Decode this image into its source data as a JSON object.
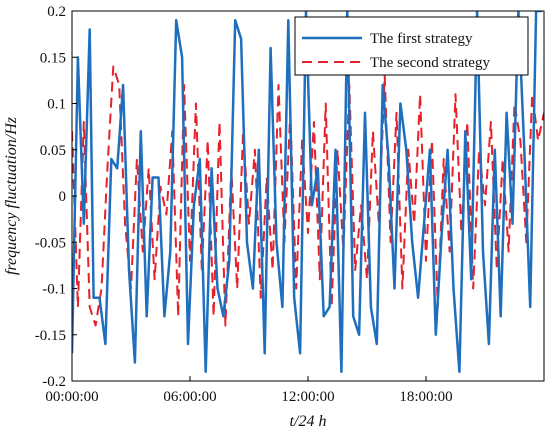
{
  "chart_data": {
    "type": "line",
    "xlabel": "t/24 h",
    "ylabel": "frequency fluctuation/Hz",
    "xlim": [
      0,
      24
    ],
    "ylim": [
      -0.2,
      0.2
    ],
    "x_ticks": [
      {
        "v": 0,
        "label": "00:00:00"
      },
      {
        "v": 6,
        "label": "06:00:00"
      },
      {
        "v": 12,
        "label": "12:00:00"
      },
      {
        "v": 18,
        "label": "18:00:00"
      }
    ],
    "y_ticks": [
      {
        "v": -0.2,
        "label": "-0.2"
      },
      {
        "v": -0.15,
        "label": "-0.15"
      },
      {
        "v": -0.1,
        "label": "-0.1"
      },
      {
        "v": -0.05,
        "label": "-0.05"
      },
      {
        "v": 0,
        "label": "0"
      },
      {
        "v": 0.05,
        "label": "0.05"
      },
      {
        "v": 0.1,
        "label": "0.1"
      },
      {
        "v": 0.15,
        "label": "0.15"
      },
      {
        "v": 0.2,
        "label": "0.2"
      }
    ],
    "grid": false,
    "legend": "top-right",
    "series": [
      {
        "name": "The first strategy",
        "color": "#1f6fbf",
        "dash": "solid",
        "x": [
          0,
          0.3,
          0.6,
          0.9,
          1.1,
          1.4,
          1.7,
          2,
          2.3,
          2.6,
          2.9,
          3.2,
          3.5,
          3.8,
          4.1,
          4.4,
          4.7,
          5,
          5.3,
          5.6,
          5.9,
          6.2,
          6.5,
          6.8,
          7.1,
          7.4,
          7.7,
          8,
          8.3,
          8.6,
          8.9,
          9.2,
          9.5,
          9.8,
          10.1,
          10.4,
          10.7,
          11,
          11.3,
          11.6,
          11.9,
          12.2,
          12.5,
          12.8,
          13.1,
          13.4,
          13.7,
          14,
          14.3,
          14.6,
          14.9,
          15.2,
          15.5,
          15.8,
          16.1,
          16.4,
          16.7,
          17,
          17.3,
          17.6,
          17.9,
          18.2,
          18.5,
          18.8,
          19.1,
          19.4,
          19.7,
          20,
          20.3,
          20.6,
          20.9,
          21.2,
          21.5,
          21.8,
          22.1,
          22.4,
          22.7,
          23,
          23.3,
          23.6,
          23.9
        ],
        "values": [
          -0.17,
          0.15,
          -0.03,
          0.18,
          -0.11,
          -0.11,
          -0.16,
          0.04,
          0.03,
          0.12,
          -0.08,
          -0.18,
          0.07,
          -0.13,
          0.02,
          0.02,
          -0.13,
          -0.06,
          0.19,
          0.15,
          -0.16,
          -0.01,
          0.04,
          -0.19,
          0.03,
          -0.1,
          -0.13,
          -0.07,
          0.19,
          0.17,
          -0.05,
          -0.1,
          0.05,
          -0.17,
          0.16,
          -0.05,
          -0.12,
          0.19,
          -0.11,
          -0.17,
          0.2,
          -0.01,
          0.03,
          -0.13,
          -0.12,
          0.05,
          -0.19,
          0.2,
          -0.13,
          -0.15,
          0.09,
          -0.12,
          -0.16,
          0.12,
          0.04,
          -0.1,
          0.1,
          0.05,
          -0.05,
          -0.11,
          -0.03,
          0.05,
          -0.15,
          -0.04,
          0.05,
          -0.1,
          -0.19,
          0.07,
          -0.09,
          0.2,
          -0.06,
          -0.16,
          0.05,
          -0.13,
          0.09,
          -0.03,
          0.2,
          0.05,
          -0.12,
          0.2,
          0.2
        ]
      },
      {
        "name": "The second strategy",
        "color": "#e8202a",
        "dash": "dashed",
        "x": [
          0,
          0.3,
          0.6,
          0.9,
          1.2,
          1.5,
          1.8,
          2.1,
          2.4,
          2.7,
          3,
          3.3,
          3.6,
          3.9,
          4.2,
          4.5,
          4.8,
          5.1,
          5.4,
          5.7,
          6,
          6.3,
          6.6,
          6.9,
          7.2,
          7.5,
          7.8,
          8.1,
          8.4,
          8.7,
          9,
          9.3,
          9.6,
          9.9,
          10.2,
          10.5,
          10.8,
          11.1,
          11.4,
          11.7,
          12,
          12.3,
          12.6,
          12.9,
          13.2,
          13.5,
          13.8,
          14.1,
          14.4,
          14.7,
          15,
          15.3,
          15.6,
          15.9,
          16.2,
          16.5,
          16.8,
          17.1,
          17.4,
          17.7,
          18,
          18.3,
          18.6,
          18.9,
          19.2,
          19.5,
          19.8,
          20.1,
          20.4,
          20.7,
          21,
          21.3,
          21.6,
          21.9,
          22.2,
          22.5,
          22.8,
          23.1,
          23.4,
          23.7,
          24
        ],
        "values": [
          0.07,
          -0.12,
          0.08,
          -0.12,
          -0.14,
          -0.1,
          0.03,
          0.14,
          0.12,
          -0.03,
          -0.1,
          0.04,
          -0.06,
          0.03,
          -0.09,
          0.01,
          -0.02,
          0.07,
          -0.13,
          0.12,
          -0.07,
          0.1,
          -0.08,
          0.06,
          -0.13,
          0.08,
          -0.14,
          0.03,
          -0.1,
          0.07,
          -0.03,
          0.05,
          -0.11,
          0.02,
          -0.08,
          0.12,
          -0.05,
          0.09,
          -0.1,
          0.06,
          -0.04,
          0.08,
          -0.09,
          0.1,
          -0.12,
          0.05,
          -0.06,
          0.12,
          -0.08,
          -0.01,
          -0.09,
          0.07,
          -0.03,
          0.13,
          -0.05,
          0.09,
          -0.1,
          0.05,
          -0.03,
          0.11,
          -0.07,
          0.06,
          -0.12,
          0.04,
          -0.06,
          0.11,
          -0.04,
          0.08,
          -0.1,
          0.05,
          -0.01,
          0.08,
          -0.08,
          0.04,
          -0.06,
          0.1,
          0.06,
          -0.05,
          0.11,
          0.06,
          0.09
        ]
      }
    ]
  }
}
